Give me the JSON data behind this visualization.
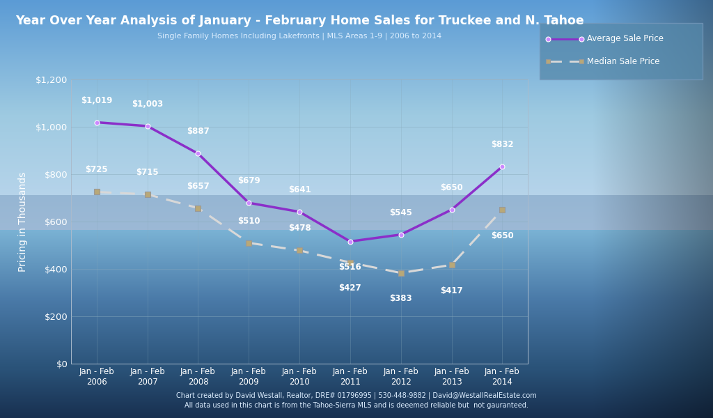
{
  "title": "Year Over Year Analysis of January - February Home Sales for Truckee and N. Tahoe",
  "subtitle": "Single Family Homes Including Lakefronts | MLS Areas 1-9 | 2006 to 2014",
  "footer_line1": "Chart created by David Westall, Realtor, DRE# 01796995 | 530-448-9882 | David@WestallRealEstate.com",
  "footer_line2": "All data used in this chart is from the Tahoe-Sierra MLS and is deeemed reliable but  not gauranteed.",
  "years": [
    "Jan - Feb\n2006",
    "Jan - Feb\n2007",
    "Jan - Feb\n2008",
    "Jan - Feb\n2009",
    "Jan - Feb\n2010",
    "Jan - Feb\n2011",
    "Jan - Feb\n2012",
    "Jan - Feb\n2013",
    "Jan - Feb\n2014"
  ],
  "average_values": [
    1019,
    1003,
    887,
    679,
    641,
    516,
    545,
    650,
    832
  ],
  "median_values": [
    725,
    715,
    657,
    510,
    478,
    427,
    383,
    417,
    650
  ],
  "average_labels": [
    "$1,019",
    "$1,003",
    "$887",
    "$679",
    "$641",
    "$516",
    "$545",
    "$650",
    "$832"
  ],
  "median_labels": [
    "$725",
    "$715",
    "$657",
    "$510",
    "$478",
    "$427",
    "$383",
    "$417",
    "$650"
  ],
  "average_color": "#8B2FC9",
  "median_color": "#D8D8D8",
  "marker_avg_color": "#CC88FF",
  "marker_med_color": "#B8A878",
  "ylabel": "Pricing in Thousands",
  "ylim": [
    0,
    1200
  ],
  "yticks": [
    0,
    200,
    400,
    600,
    800,
    1000,
    1200
  ],
  "ytick_labels": [
    "$0",
    "$200",
    "$400",
    "$600",
    "$800",
    "$1,000",
    "$1,200"
  ],
  "legend_avg_label": "Average Sale Price",
  "legend_med_label": "Median Sale Price",
  "title_color": "#FFFFFF",
  "subtitle_color": "#DDEEFF",
  "tick_label_color": "#FFFFFF",
  "grid_color": "#88AABB",
  "avg_label_offsets": [
    1,
    1,
    1,
    1,
    1,
    -1,
    1,
    1,
    1
  ],
  "med_label_offsets": [
    1,
    1,
    1,
    1,
    1,
    -1,
    -1,
    -1,
    -1
  ]
}
